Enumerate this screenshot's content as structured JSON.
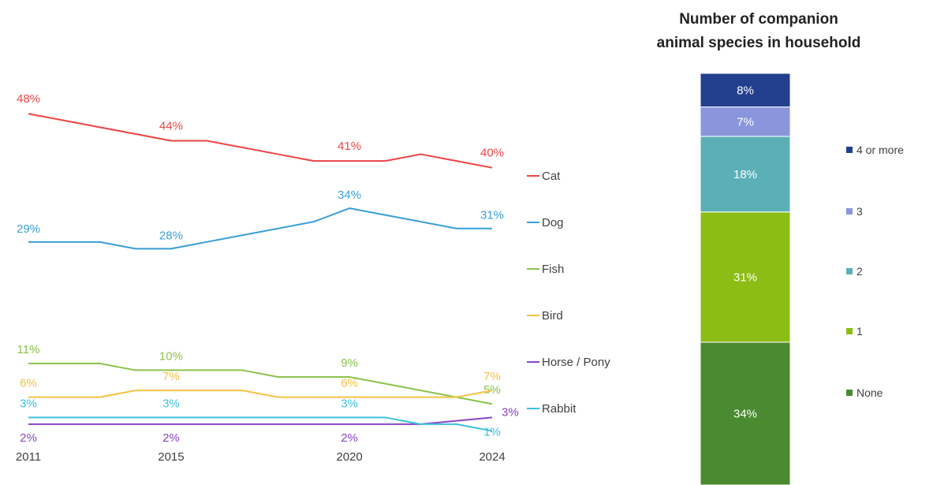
{
  "chart_data": [
    {
      "type": "line",
      "title": "",
      "xlabel": "",
      "ylabel": "",
      "x": [
        2011,
        2012,
        2013,
        2014,
        2015,
        2016,
        2017,
        2018,
        2019,
        2020,
        2021,
        2022,
        2023,
        2024
      ],
      "x_tick_labels": [
        "2011",
        "2015",
        "2020",
        "2024"
      ],
      "ylim": [
        0,
        52
      ],
      "grid": false,
      "legend": "right",
      "series": [
        {
          "name": "Cat",
          "color": "#ee4444",
          "values": [
            48,
            47,
            46,
            45,
            44,
            44,
            43,
            42,
            41,
            41,
            41,
            42,
            41,
            40
          ],
          "labels": [
            "48%",
            "44%",
            "41%",
            "40%"
          ]
        },
        {
          "name": "Dog",
          "color": "#3a9fd6",
          "values": [
            29,
            29,
            29,
            28,
            28,
            29,
            30,
            31,
            32,
            34,
            33,
            32,
            31,
            31
          ],
          "labels": [
            "29%",
            "28%",
            "34%",
            "31%"
          ]
        },
        {
          "name": "Fish",
          "color": "#8bc34a",
          "values": [
            11,
            11,
            11,
            10,
            10,
            10,
            10,
            9,
            9,
            9,
            8,
            7,
            6,
            5
          ],
          "labels": [
            "11%",
            "10%",
            "9%",
            "5%"
          ]
        },
        {
          "name": "Bird",
          "color": "#f5c242",
          "values": [
            6,
            6,
            6,
            7,
            7,
            7,
            7,
            6,
            6,
            6,
            6,
            6,
            6,
            7
          ],
          "labels": [
            "6%",
            "7%",
            "6%",
            "7%"
          ]
        },
        {
          "name": "Horse / Pony",
          "color": "#8b45c6",
          "values": [
            2,
            2,
            2,
            2,
            2,
            2,
            2,
            2,
            2,
            2,
            2,
            2,
            2.5,
            3
          ],
          "labels": [
            "2%",
            "2%",
            "2%",
            "3%"
          ]
        },
        {
          "name": "Rabbit",
          "color": "#3cc0e0",
          "values": [
            3,
            3,
            3,
            3,
            3,
            3,
            3,
            3,
            3,
            3,
            3,
            2,
            2,
            1
          ],
          "labels": [
            "3%",
            "3%",
            "3%",
            "1%"
          ]
        }
      ]
    },
    {
      "type": "bar",
      "stacked": true,
      "title": "Number of companion animal species in household",
      "title_lines": [
        "Number of companion",
        "animal species in household"
      ],
      "legend": "right",
      "series": [
        {
          "name": "None",
          "value": 34,
          "label": "34%",
          "color": "#4a8a30"
        },
        {
          "name": "1",
          "value": 31,
          "label": "31%",
          "color": "#8cbd14"
        },
        {
          "name": "2",
          "value": 18,
          "label": "18%",
          "color": "#5bb0b8"
        },
        {
          "name": "3",
          "value": 7,
          "label": "7%",
          "color": "#8a96dc"
        },
        {
          "name": "4 or more",
          "value": 8,
          "label": "8%",
          "color": "#23408e"
        }
      ]
    }
  ]
}
